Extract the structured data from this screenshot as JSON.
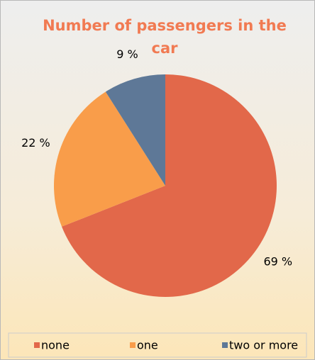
{
  "chart_data": {
    "type": "pie",
    "title": "Number of passengers in the car",
    "categories": [
      "none",
      "one",
      "two or more"
    ],
    "values": [
      69,
      22,
      9
    ],
    "value_labels": [
      "69 %",
      "22 %",
      "9 %"
    ],
    "colors": [
      "#e2684a",
      "#f99d4a",
      "#5e7897"
    ],
    "legend": "bottom"
  }
}
